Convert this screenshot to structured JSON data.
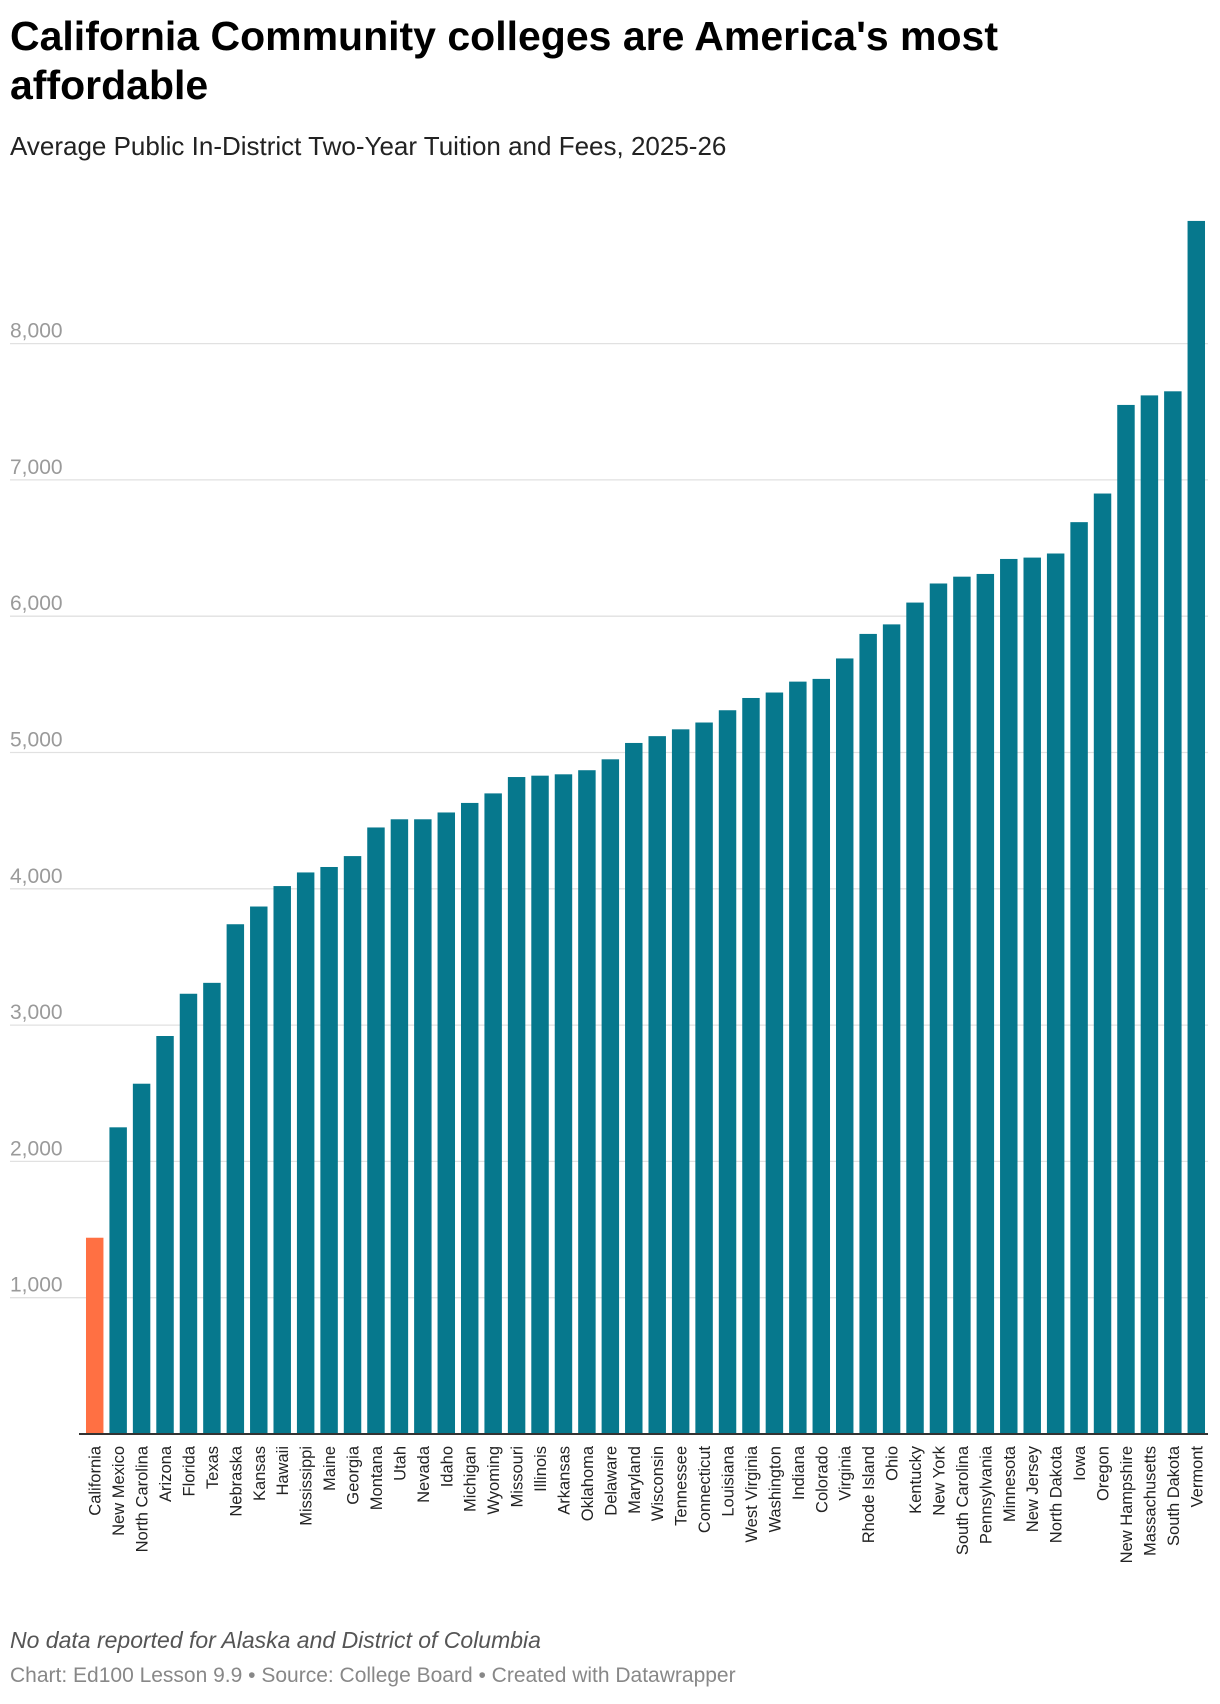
{
  "header": {
    "title": "California Community colleges are America's most affordable",
    "subtitle": "Average Public In-District Two-Year Tuition and Fees, 2025-26"
  },
  "notes": {
    "note": "No data reported for Alaska and District of Columbia",
    "footer": "Chart: Ed100 Lesson 9.9 • Source: College Board • Created with Datawrapper"
  },
  "colors": {
    "highlight": "#ff7043",
    "bar": "#06788d",
    "grid": "#e1e1e1",
    "axis": "#333333"
  },
  "chart_data": {
    "type": "bar",
    "title": "California Community colleges are America's most affordable",
    "subtitle": "Average Public In-District Two-Year Tuition and Fees, 2025-26",
    "xlabel": "",
    "ylabel": "",
    "ylim": [
      0,
      8950
    ],
    "yticks": [
      1000,
      2000,
      3000,
      4000,
      5000,
      6000,
      7000,
      8000
    ],
    "ytick_labels": [
      "1,000",
      "2,000",
      "3,000",
      "4,000",
      "5,000",
      "6,000",
      "7,000",
      "8,000"
    ],
    "grid": true,
    "highlight_category": "California",
    "categories": [
      "California",
      "New Mexico",
      "North Carolina",
      "Arizona",
      "Florida",
      "Texas",
      "Nebraska",
      "Kansas",
      "Hawaii",
      "Mississippi",
      "Maine",
      "Georgia",
      "Montana",
      "Utah",
      "Nevada",
      "Idaho",
      "Michigan",
      "Wyoming",
      "Missouri",
      "Illinois",
      "Arkansas",
      "Oklahoma",
      "Delaware",
      "Maryland",
      "Wisconsin",
      "Tennessee",
      "Connecticut",
      "Louisiana",
      "West Virginia",
      "Washington",
      "Indiana",
      "Colorado",
      "Virginia",
      "Rhode Island",
      "Ohio",
      "Kentucky",
      "New York",
      "South Carolina",
      "Pennsylvania",
      "Minnesota",
      "New Jersey",
      "North Dakota",
      "Iowa",
      "Oregon",
      "New Hampshire",
      "Massachusetts",
      "South Dakota",
      "Vermont"
    ],
    "values": [
      1440,
      2250,
      2570,
      2920,
      3230,
      3310,
      3740,
      3870,
      4020,
      4120,
      4160,
      4240,
      4450,
      4510,
      4510,
      4560,
      4630,
      4700,
      4820,
      4830,
      4840,
      4870,
      4950,
      5070,
      5120,
      5170,
      5220,
      5310,
      5400,
      5440,
      5520,
      5540,
      5690,
      5870,
      5940,
      6100,
      6240,
      6290,
      6310,
      6420,
      6430,
      6460,
      6690,
      6900,
      7550,
      7620,
      7650,
      8900
    ]
  }
}
